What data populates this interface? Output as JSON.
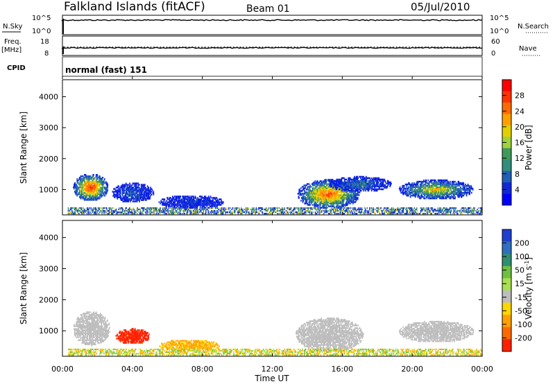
{
  "header": {
    "station": "Falkland Islands (fitACF)",
    "beam": "Beam 01",
    "date": "05/Jul/2010"
  },
  "strip_nsky": {
    "label": "N.Sky",
    "yticks": [
      "10^5",
      "10^0"
    ],
    "right_label": "N.Search",
    "right_ticks": [
      "10^5",
      "10^0"
    ]
  },
  "strip_freq": {
    "label": "Freq.",
    "unit": "[MHz]",
    "yticks": [
      "18",
      "8"
    ],
    "right_label": "Nave",
    "right_ticks": [
      "60",
      "0"
    ]
  },
  "strip_cpid": {
    "label": "CPID",
    "value": "normal (fast) 151"
  },
  "xaxis": {
    "ticks": [
      "00:00",
      "04:00",
      "08:00",
      "12:00",
      "16:00",
      "20:00",
      "00:00"
    ],
    "label": "Time UT"
  },
  "power_colorbar": {
    "label": "Power [dB]",
    "ticks": [
      "28",
      "24",
      "20",
      "16",
      "12",
      "8",
      "4"
    ],
    "colors": [
      "#ff0000",
      "#ff3300",
      "#ff6a00",
      "#ffa000",
      "#e3cf00",
      "#9fd23c",
      "#3f9a5a",
      "#2f8f7a",
      "#1f5fb5",
      "#1028d8",
      "#0000ff"
    ]
  },
  "velocity_colorbar": {
    "label": "Velocity [m s^-1]",
    "ticks": [
      "200",
      "100",
      "50",
      "15",
      "-15",
      "-50",
      "-100",
      "-200"
    ],
    "colors": [
      "#1f3fd0",
      "#2f6fc0",
      "#2f8f70",
      "#6fc040",
      "#a8e050",
      "#bdbdbd",
      "#ffd700",
      "#ffa000",
      "#ff6a00",
      "#ff2000"
    ]
  },
  "chart_data": [
    {
      "type": "heatmap",
      "panel": "power",
      "ylabel": "Slant Range [km]",
      "xlabel": "Time UT",
      "xlim": [
        0,
        24
      ],
      "ylim": [
        180,
        4550
      ],
      "yticks": [
        "1000",
        "2000",
        "3000",
        "4000"
      ],
      "clusters": [
        {
          "t0": 0.6,
          "t1": 2.6,
          "r0": 600,
          "r1": 1500,
          "peak": 26
        },
        {
          "t0": 2.8,
          "t1": 5.2,
          "r0": 550,
          "r1": 1200,
          "peak": 8
        },
        {
          "t0": 5.5,
          "t1": 9.2,
          "r0": 350,
          "r1": 800,
          "peak": 6
        },
        {
          "t0": 13.4,
          "t1": 17.0,
          "r0": 350,
          "r1": 1300,
          "peak": 24
        },
        {
          "t0": 15.2,
          "t1": 18.8,
          "r0": 900,
          "r1": 1400,
          "peak": 10
        },
        {
          "t0": 19.2,
          "t1": 23.5,
          "r0": 650,
          "r1": 1300,
          "peak": 18
        }
      ]
    },
    {
      "type": "heatmap",
      "panel": "velocity",
      "ylabel": "Slant Range [km]",
      "xlabel": "Time UT",
      "xlim": [
        0,
        24
      ],
      "ylim": [
        180,
        4550
      ],
      "yticks": [
        "1000",
        "2000",
        "3000",
        "4000"
      ],
      "clusters": [
        {
          "t0": 0.6,
          "t1": 2.7,
          "r0": 500,
          "r1": 1600,
          "vel": 0
        },
        {
          "t0": 3.0,
          "t1": 5.0,
          "r0": 550,
          "r1": 1050,
          "vel": -180
        },
        {
          "t0": 5.5,
          "t1": 9.0,
          "r0": 300,
          "r1": 700,
          "vel": -60
        },
        {
          "t0": 13.3,
          "t1": 17.2,
          "r0": 300,
          "r1": 1400,
          "vel": 0
        },
        {
          "t0": 19.2,
          "t1": 23.5,
          "r0": 600,
          "r1": 1300,
          "vel": 0
        }
      ]
    }
  ]
}
